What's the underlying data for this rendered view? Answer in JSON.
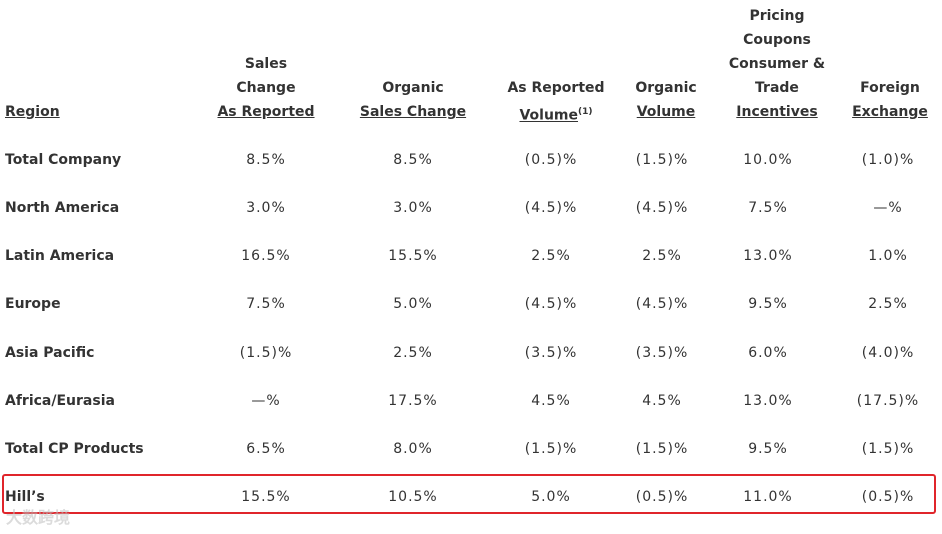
{
  "headers": {
    "region": "Region",
    "sales_change": [
      "Sales",
      "Change",
      "As Reported"
    ],
    "organic_sales": [
      "Organic",
      "Sales Change"
    ],
    "reported_volume": [
      "As Reported",
      "Volume"
    ],
    "reported_volume_sup": "(1)",
    "organic_volume": [
      "Organic",
      "Volume"
    ],
    "pricing": [
      "Pricing",
      "Coupons",
      "Consumer &",
      "Trade",
      "Incentives"
    ],
    "fx": [
      "Foreign",
      "Exchange"
    ]
  },
  "rows": [
    {
      "region": "Total Company",
      "sales": "8.5%",
      "organic": "8.5%",
      "volume": "(0.5)%",
      "org_volume": "(1.5)%",
      "pricing": "10.0%",
      "fx": "(1.0)%"
    },
    {
      "region": "North America",
      "sales": "3.0%",
      "organic": "3.0%",
      "volume": "(4.5)%",
      "org_volume": "(4.5)%",
      "pricing": "7.5%",
      "fx": "—%"
    },
    {
      "region": "Latin America",
      "sales": "16.5%",
      "organic": "15.5%",
      "volume": "2.5%",
      "org_volume": "2.5%",
      "pricing": "13.0%",
      "fx": "1.0%"
    },
    {
      "region": "Europe",
      "sales": "7.5%",
      "organic": "5.0%",
      "volume": "(4.5)%",
      "org_volume": "(4.5)%",
      "pricing": "9.5%",
      "fx": "2.5%"
    },
    {
      "region": "Asia Pacific",
      "sales": "(1.5)%",
      "organic": "2.5%",
      "volume": "(3.5)%",
      "org_volume": "(3.5)%",
      "pricing": "6.0%",
      "fx": "(4.0)%"
    },
    {
      "region": "Africa/Eurasia",
      "sales": "—%",
      "organic": "17.5%",
      "volume": "4.5%",
      "org_volume": "4.5%",
      "pricing": "13.0%",
      "fx": "(17.5)%"
    },
    {
      "region": "Total CP Products",
      "sales": "6.5%",
      "organic": "8.0%",
      "volume": "(1.5)%",
      "org_volume": "(1.5)%",
      "pricing": "9.5%",
      "fx": "(1.5)%"
    },
    {
      "region": "Hill’s",
      "sales": "15.5%",
      "organic": "10.5%",
      "volume": "5.0%",
      "org_volume": "(0.5)%",
      "pricing": "11.0%",
      "fx": "(0.5)%"
    }
  ],
  "highlight_color": "#e0252b",
  "watermark": "大数跨境"
}
